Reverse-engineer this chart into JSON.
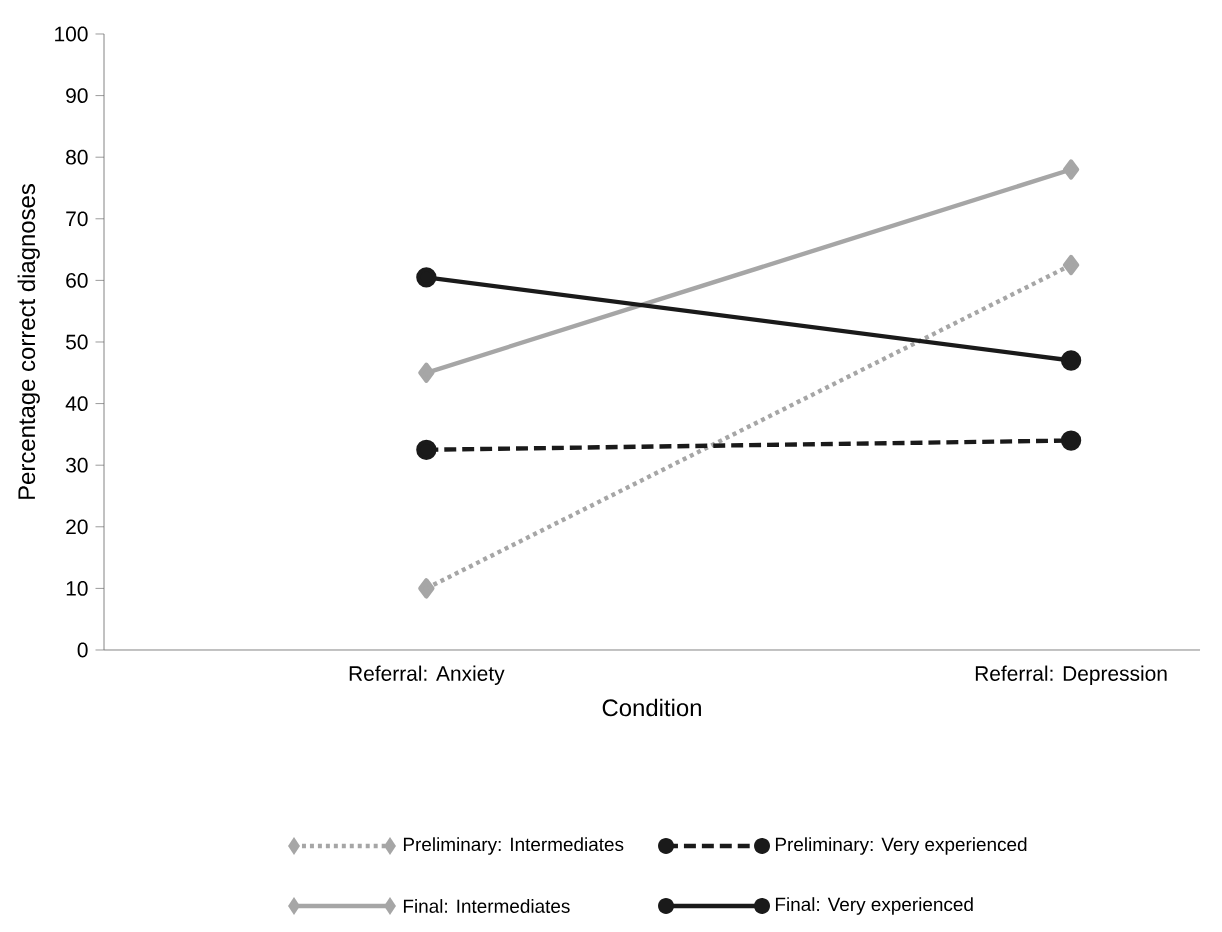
{
  "chart_data": {
    "type": "line",
    "xlabel": "Condition",
    "ylabel": "Percentage correct diagnoses",
    "categories": [
      "Referral: Anxiety",
      "Referral: Depression"
    ],
    "series": [
      {
        "name": "Preliminary: Intermediates",
        "color": "#a6a6a6",
        "values": [
          10,
          62.5
        ],
        "marker": "diamond",
        "line_style": "dotted"
      },
      {
        "name": "Preliminary: Very experienced",
        "color": "#1a1a1a",
        "values": [
          32.5,
          34
        ],
        "marker": "circle",
        "line_style": "dashed"
      },
      {
        "name": "Final: Intermediates",
        "color": "#a6a6a6",
        "values": [
          45,
          78
        ],
        "marker": "diamond",
        "line_style": "solid"
      },
      {
        "name": "Final: Very experienced",
        "color": "#1a1a1a",
        "values": [
          60.5,
          47
        ],
        "marker": "circle",
        "line_style": "solid"
      }
    ],
    "ylim": [
      0,
      100
    ],
    "yticks": [
      0,
      10,
      20,
      30,
      40,
      50,
      60,
      70,
      80,
      90,
      100
    ],
    "grid": false,
    "legend": "bottom"
  }
}
